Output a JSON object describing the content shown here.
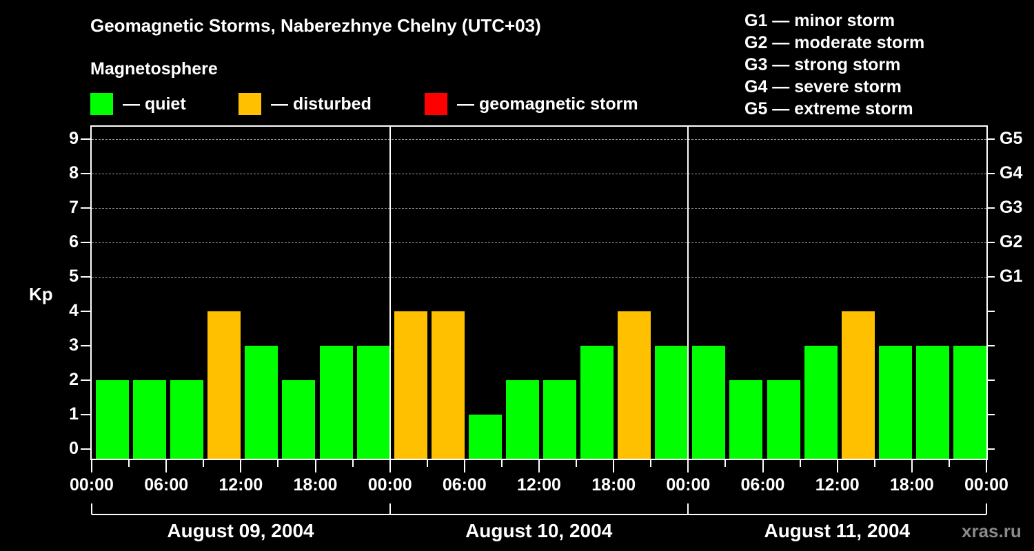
{
  "title": "Geomagnetic Storms, Naberezhnye Chelny (UTC+03)",
  "subtitle": "Magnetosphere",
  "legend": [
    {
      "label": "— quiet",
      "color": "#00ff00"
    },
    {
      "label": "— disturbed",
      "color": "#ffc000"
    },
    {
      "label": "— geomagnetic storm",
      "color": "#ff0000"
    }
  ],
  "g_scale": [
    "G1 — minor storm",
    "G2 — moderate storm",
    "G3 — strong storm",
    "G4 — severe storm",
    "G5 — extreme storm"
  ],
  "y_axis_label": "Kp",
  "watermark": "xras.ru",
  "chart_data": {
    "type": "bar",
    "title": "Geomagnetic Storms, Naberezhnye Chelny (UTC+03)",
    "xlabel": "",
    "ylabel": "Kp",
    "ylim": [
      0,
      9
    ],
    "yticks": [
      0,
      1,
      2,
      3,
      4,
      5,
      6,
      7,
      8,
      9
    ],
    "right_axis_labels": {
      "5": "G1",
      "6": "G2",
      "7": "G3",
      "8": "G4",
      "9": "G5"
    },
    "x_tick_labels": [
      "00:00",
      "06:00",
      "12:00",
      "18:00",
      "00:00",
      "06:00",
      "12:00",
      "18:00",
      "00:00",
      "06:00",
      "12:00",
      "18:00",
      "00:00"
    ],
    "day_labels": [
      "August 09, 2004",
      "August 10, 2004",
      "August 11, 2004"
    ],
    "grid": "dashed horizontal at 5-9",
    "interval_hours": 3,
    "days": [
      {
        "date": "August 09, 2004",
        "values": [
          2,
          2,
          2,
          4,
          3,
          2,
          3,
          3
        ]
      },
      {
        "date": "August 10, 2004",
        "values": [
          4,
          4,
          1,
          2,
          2,
          3,
          4,
          3
        ]
      },
      {
        "date": "August 11, 2004",
        "values": [
          3,
          2,
          2,
          3,
          4,
          3,
          3,
          3
        ]
      }
    ],
    "color_rule": {
      "quiet": "#00ff00 (Kp<4)",
      "disturbed": "#ffc000 (Kp=4)",
      "storm": "#ff0000 (Kp>=5)"
    }
  }
}
